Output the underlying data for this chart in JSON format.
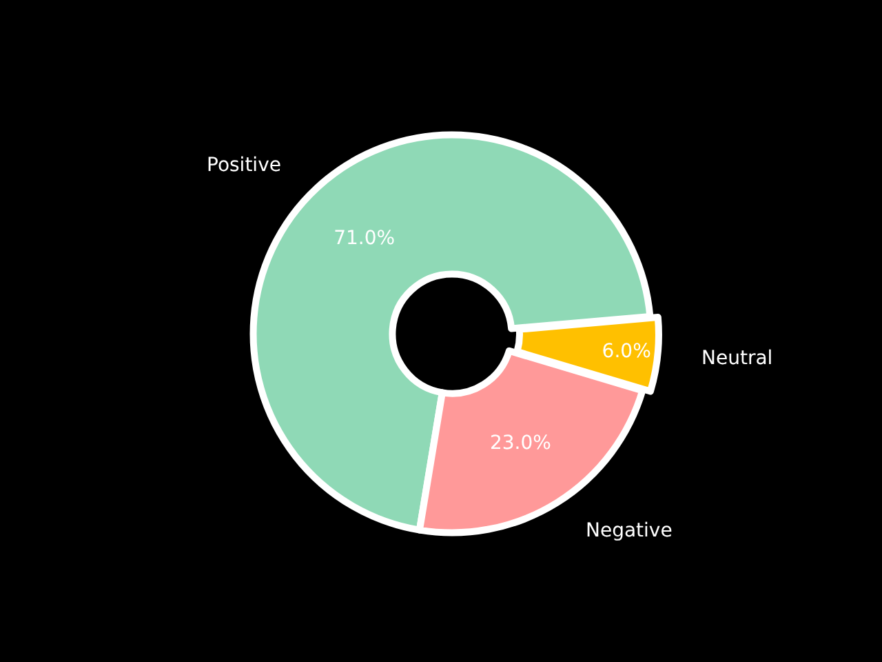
{
  "chart_data": {
    "type": "donut",
    "categories": [
      "Positive",
      "Negative",
      "Neutral"
    ],
    "values": [
      71,
      23,
      6
    ],
    "colors": [
      "#8fd9b6",
      "#ff9999",
      "#ffc000"
    ],
    "value_labels": [
      "71.0%",
      "23.0%",
      "6.0%"
    ],
    "legend": false
  }
}
